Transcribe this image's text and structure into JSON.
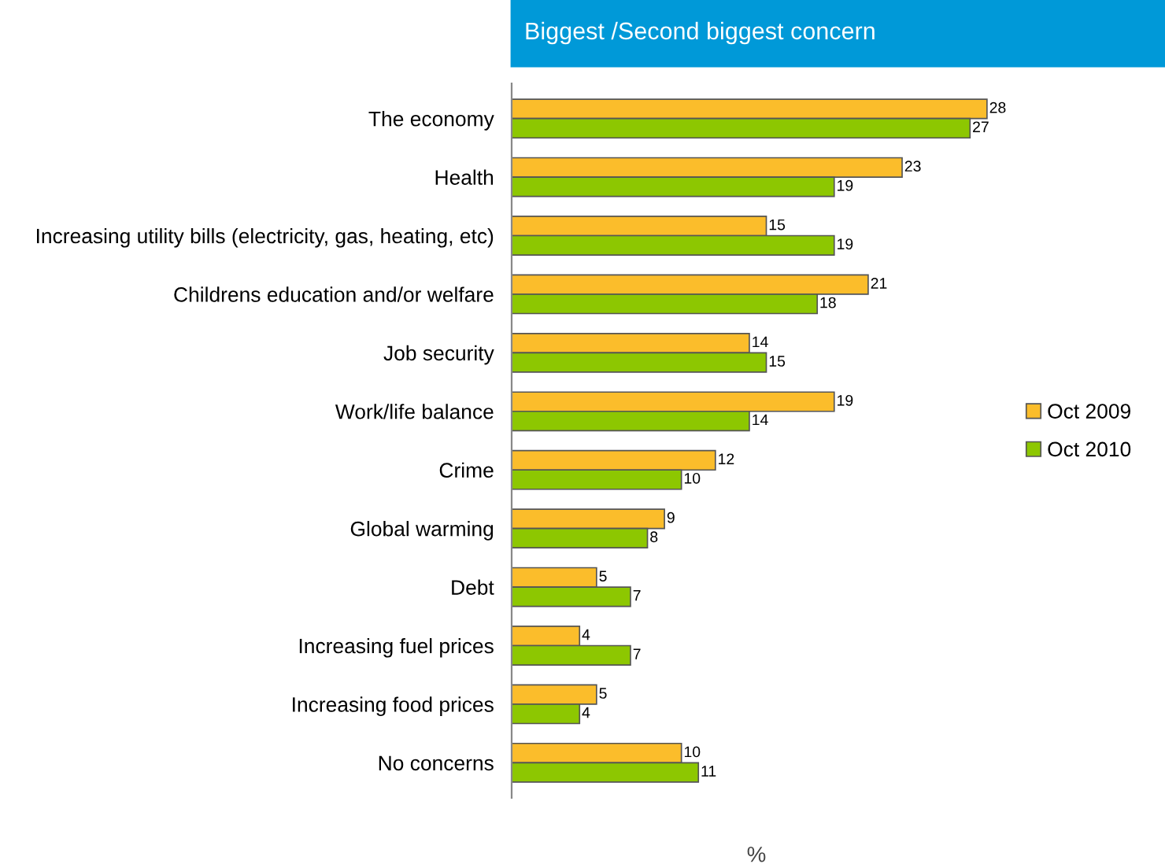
{
  "chart_data": {
    "type": "bar",
    "orientation": "horizontal",
    "title": "Biggest /Second biggest concern",
    "xlabel": "%",
    "categories": [
      "The economy",
      "Health",
      "Increasing utility bills (electricity, gas, heating, etc)",
      "Childrens education and/or welfare",
      "Job security",
      "Work/life balance",
      "Crime",
      "Global warming",
      "Debt",
      "Increasing fuel prices",
      "Increasing food prices",
      "No concerns"
    ],
    "series": [
      {
        "name": "Oct 2009",
        "color": "#fbbd2b",
        "values": [
          28,
          23,
          15,
          21,
          14,
          19,
          12,
          9,
          5,
          4,
          5,
          10
        ]
      },
      {
        "name": "Oct 2010",
        "color": "#8dc701",
        "values": [
          27,
          19,
          19,
          18,
          15,
          14,
          10,
          8,
          7,
          7,
          4,
          11
        ]
      }
    ],
    "data_labels": true,
    "legend": "right",
    "grid": false,
    "tick_labels": "y"
  }
}
